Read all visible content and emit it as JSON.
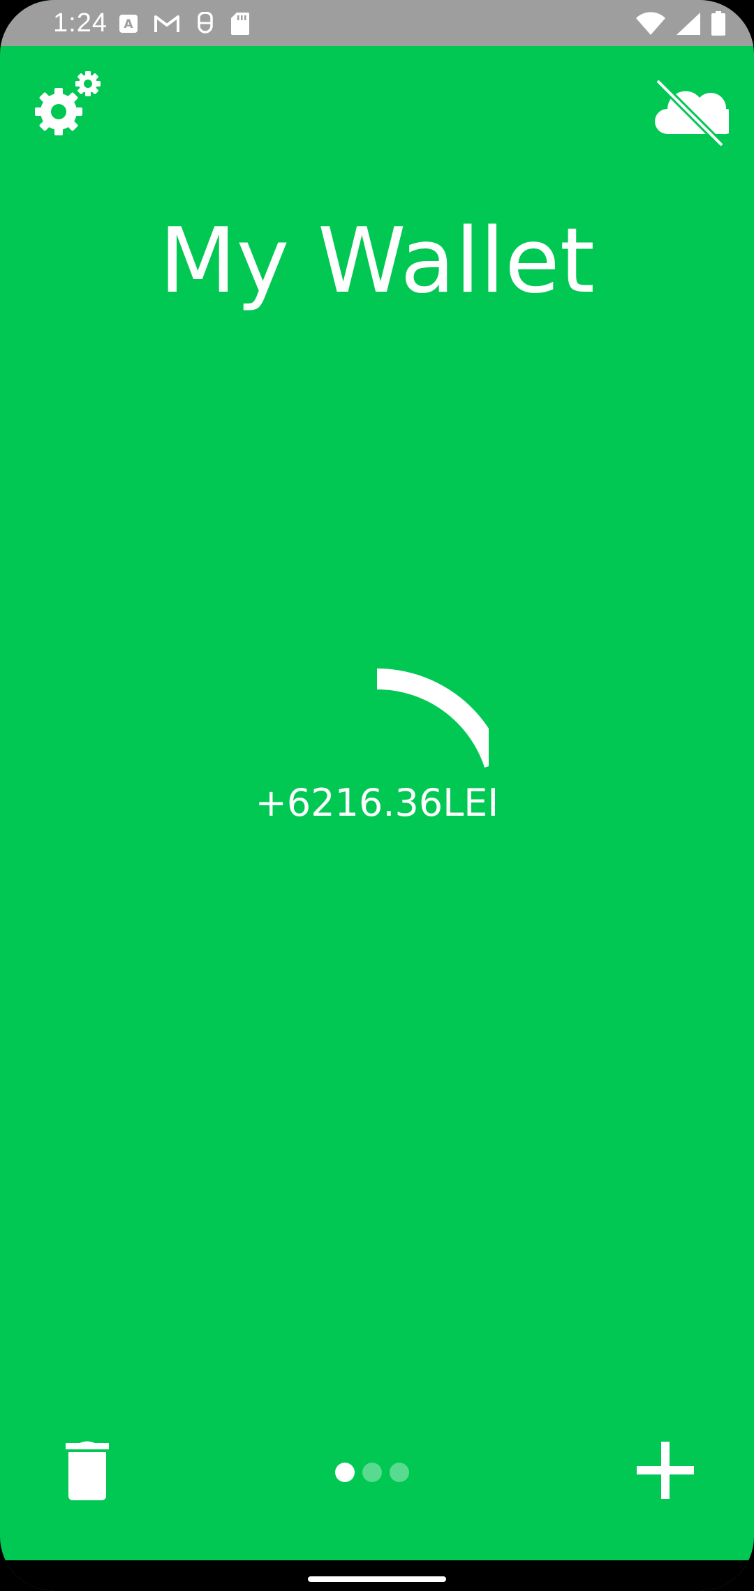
{
  "status_bar": {
    "time": "1:24",
    "left_icons": [
      "font-a-icon",
      "gmail-icon",
      "vpn-key-icon",
      "sd-card-icon"
    ],
    "right_icons": [
      "wifi-icon",
      "signal-icon",
      "battery-icon"
    ],
    "background": "#9e9e9e"
  },
  "header": {
    "settings_icon": "settings-gears-icon",
    "sync_icon": "cloud-off-icon"
  },
  "main": {
    "title": "My Wallet",
    "balance": "+6216.36LEI",
    "arc_progress": 0.2
  },
  "footer": {
    "delete_icon": "trash-icon",
    "add_icon": "plus-icon",
    "pages": 3,
    "active_page": 1
  },
  "colors": {
    "background": "#00c853",
    "foreground": "#ffffff",
    "nav_bar": "#000000"
  }
}
